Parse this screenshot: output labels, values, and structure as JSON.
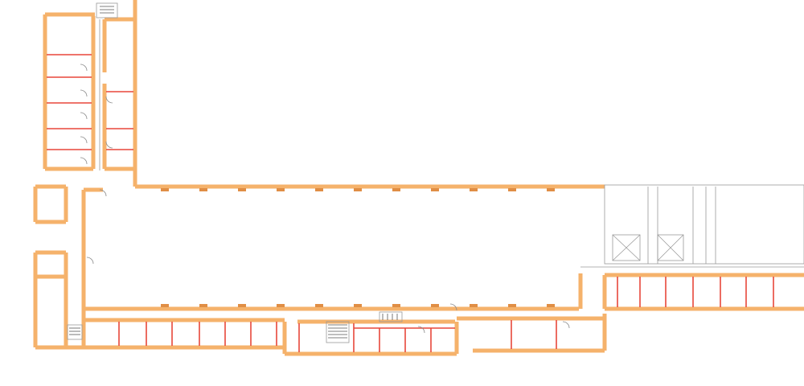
{
  "colors": {
    "wall": "#f5b26b",
    "wall_edge": "#e08e45",
    "partition": "#e8473a",
    "thin": "#9a9a9a",
    "background": "#ffffff"
  },
  "legend": []
}
